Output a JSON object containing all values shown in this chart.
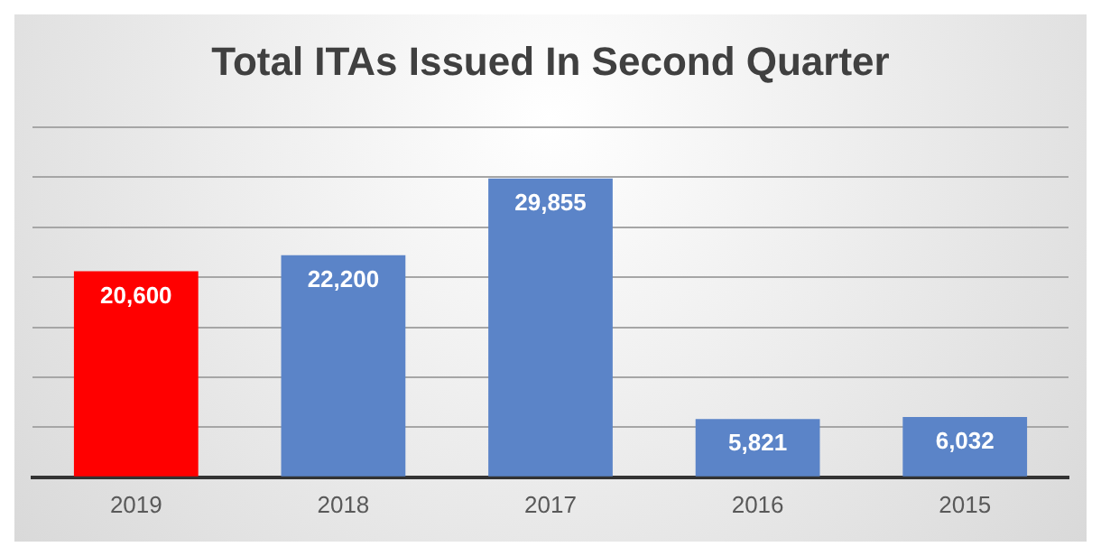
{
  "chart_data": {
    "type": "bar",
    "title": "Total ITAs Issued In Second Quarter",
    "categories": [
      "2019",
      "2018",
      "2017",
      "2016",
      "2015"
    ],
    "values": [
      20600,
      22200,
      29855,
      5821,
      6032
    ],
    "colors": [
      "#ff0000",
      "#5b84c8",
      "#5b84c8",
      "#5b84c8",
      "#5b84c8"
    ],
    "value_labels": [
      "20,600",
      "22,200",
      "29,855",
      "5,821",
      "6,032"
    ],
    "ylim": [
      0,
      35000
    ],
    "yticks": [
      {
        "value": 0,
        "label": null
      },
      {
        "value": 5000,
        "label": null
      },
      {
        "value": 10000,
        "label": null
      },
      {
        "value": 15000,
        "label": null
      },
      {
        "value": 20000,
        "label": null
      },
      {
        "value": 25000,
        "label": null
      },
      {
        "value": 30000,
        "label": null
      },
      {
        "value": 35000,
        "label": null
      }
    ],
    "tick_labels": "x",
    "grid": "y",
    "legend": false
  }
}
